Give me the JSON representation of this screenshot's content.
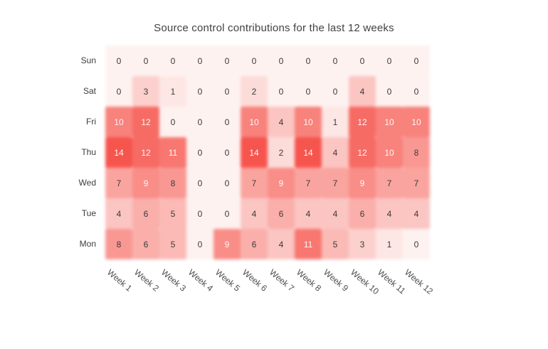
{
  "title": "Source control contributions for the last 12 weeks",
  "chart_data": {
    "type": "heatmap",
    "title": "Source control contributions for the last 12 weeks",
    "rows": [
      "Sun",
      "Sat",
      "Fri",
      "Thu",
      "Wed",
      "Tue",
      "Mon"
    ],
    "columns": [
      "Week 1",
      "Week 2",
      "Week 3",
      "Week 4",
      "Week 5",
      "Week 6",
      "Week 7",
      "Week 8",
      "Week 9",
      "Week 10",
      "Week 11",
      "Week 12"
    ],
    "values": [
      [
        0,
        0,
        0,
        0,
        0,
        0,
        0,
        0,
        0,
        0,
        0,
        0
      ],
      [
        0,
        3,
        1,
        0,
        0,
        2,
        0,
        0,
        0,
        4,
        0,
        0
      ],
      [
        10,
        12,
        0,
        0,
        0,
        10,
        4,
        10,
        1,
        12,
        10,
        10
      ],
      [
        14,
        12,
        11,
        0,
        0,
        14,
        2,
        14,
        4,
        12,
        10,
        8
      ],
      [
        7,
        9,
        8,
        0,
        0,
        7,
        9,
        7,
        7,
        9,
        7,
        7
      ],
      [
        4,
        6,
        5,
        0,
        0,
        4,
        6,
        4,
        4,
        6,
        4,
        4
      ],
      [
        8,
        6,
        5,
        0,
        9,
        6,
        4,
        11,
        5,
        3,
        1,
        0
      ]
    ],
    "value_range": [
      0,
      14
    ],
    "color_low": "#FDF2F0",
    "color_high": "#F6554E",
    "text_dark": "#3A3A3A",
    "text_light": "#FFF7F6",
    "light_text_threshold": 9,
    "grid": false,
    "legend": "none",
    "x_label_rotation_deg": 40
  }
}
